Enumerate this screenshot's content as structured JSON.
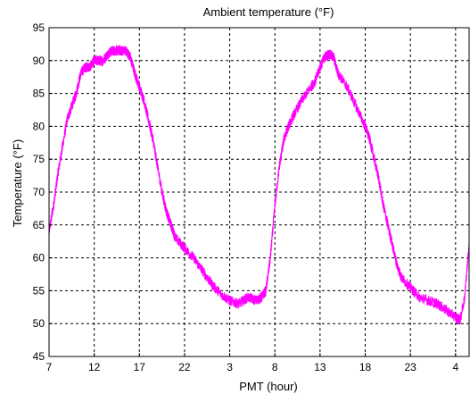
{
  "chart_data": {
    "type": "line",
    "title": "Ambient temperature (°F)",
    "xlabel": "PMT (hour)",
    "ylabel": "Temperature (°F)",
    "xlim": [
      7,
      53.5
    ],
    "ylim": [
      45,
      95
    ],
    "x_ticks": [
      7,
      12,
      17,
      22,
      27,
      32,
      37,
      42,
      47,
      52
    ],
    "x_tick_labels": [
      "7",
      "12",
      "17",
      "22",
      "3",
      "8",
      "13",
      "18",
      "23",
      "4"
    ],
    "y_ticks": [
      45,
      50,
      55,
      60,
      65,
      70,
      75,
      80,
      85,
      90,
      95
    ],
    "grid": true,
    "series": [
      {
        "color": "#ff00ff",
        "x": [
          7.0,
          7.5,
          8.0,
          8.5,
          9.0,
          9.5,
          10.0,
          10.5,
          11.0,
          11.5,
          12.0,
          12.5,
          13.0,
          13.5,
          14.0,
          14.5,
          15.0,
          15.5,
          16.0,
          16.5,
          17.0,
          17.5,
          18.0,
          18.5,
          19.0,
          19.5,
          20.0,
          20.5,
          21.0,
          22.0,
          23.0,
          24.0,
          25.0,
          26.0,
          27.0,
          28.0,
          29.0,
          30.0,
          30.5,
          31.0,
          31.5,
          32.0,
          32.5,
          33.0,
          33.5,
          34.0,
          35.0,
          36.0,
          36.5,
          37.0,
          37.5,
          38.0,
          38.5,
          39.0,
          40.0,
          41.0,
          42.0,
          42.5,
          43.0,
          43.5,
          44.0,
          44.5,
          45.0,
          45.5,
          46.0,
          47.0,
          48.0,
          49.0,
          50.0,
          51.0,
          52.0,
          52.5,
          53.0,
          53.5
        ],
        "y": [
          64,
          68,
          73,
          77,
          81,
          83,
          85,
          88,
          89,
          89,
          90,
          90,
          90,
          91,
          91.5,
          91.5,
          91.5,
          91.5,
          90.5,
          88,
          86,
          84,
          81,
          78,
          74,
          70,
          67,
          65,
          63,
          61.5,
          60,
          58,
          56,
          54.5,
          53.5,
          53,
          54,
          53.5,
          54,
          55,
          60,
          68,
          74,
          78,
          80,
          81.5,
          84,
          86,
          87,
          89,
          90.5,
          91,
          90.5,
          88,
          86,
          83,
          80,
          78,
          75,
          72,
          68,
          65,
          62,
          59,
          57,
          55.5,
          54,
          53.5,
          53,
          52,
          51,
          50.5,
          54,
          62
        ]
      }
    ]
  }
}
